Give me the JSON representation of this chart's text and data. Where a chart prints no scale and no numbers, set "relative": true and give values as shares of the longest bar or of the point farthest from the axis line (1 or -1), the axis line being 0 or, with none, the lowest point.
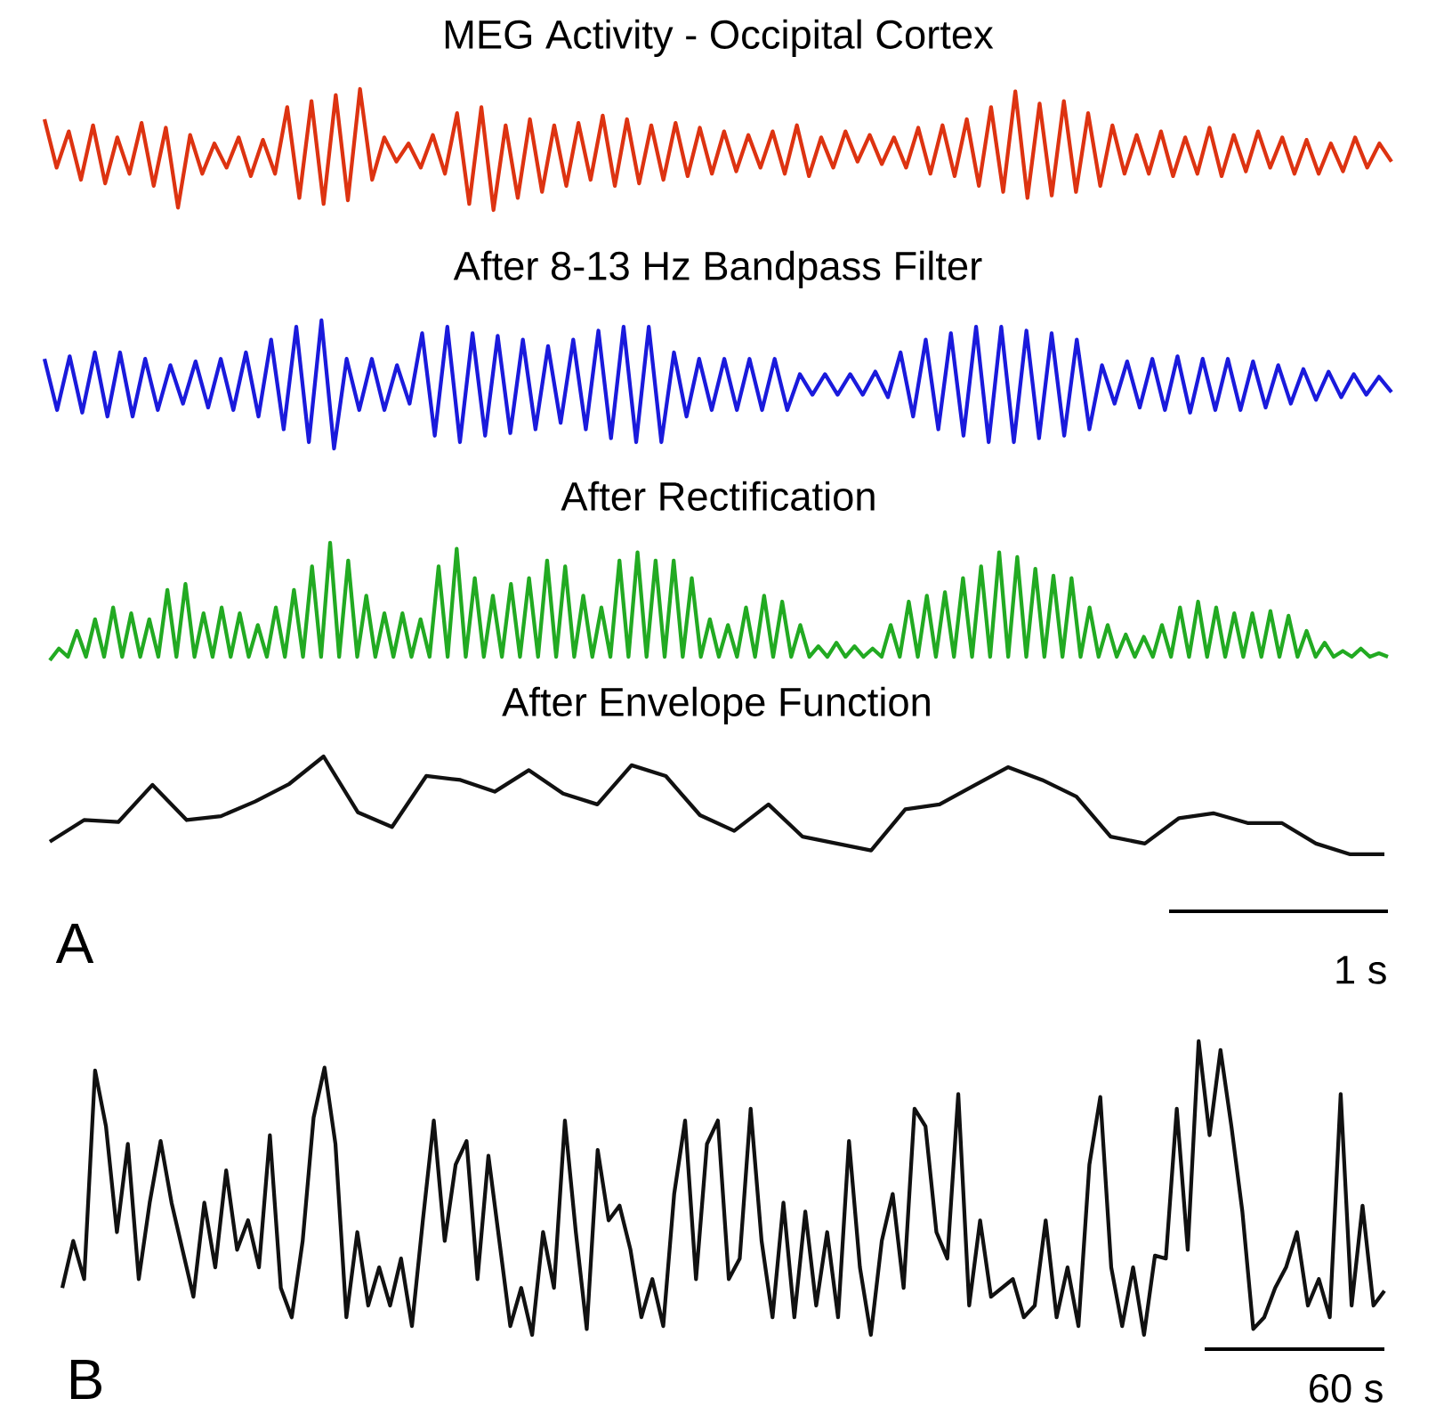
{
  "chart_data": [
    {
      "type": "line",
      "title": "MEG Activity - Occipital Cortex",
      "relative": true,
      "color": "#dd3311",
      "categories": [
        null,
        null,
        null,
        null,
        null,
        null,
        null,
        null,
        null,
        null,
        null,
        null,
        null,
        null,
        null,
        null,
        null,
        null,
        null,
        null,
        null,
        null,
        null,
        null,
        null,
        null,
        null,
        null,
        null,
        null,
        null,
        null,
        null,
        null,
        null,
        null,
        null,
        null,
        null,
        null,
        null,
        null,
        null,
        null,
        null,
        null,
        null,
        null,
        null,
        null,
        null,
        null,
        null,
        null,
        null,
        null,
        null,
        null,
        null,
        null,
        null,
        null,
        null,
        null,
        null,
        null,
        null,
        null,
        null,
        null,
        null,
        null,
        null,
        null,
        null,
        null,
        null,
        null,
        null,
        null,
        null,
        null,
        null,
        null,
        null,
        null,
        null,
        null,
        null,
        null,
        null,
        null,
        null,
        null,
        null,
        null,
        null,
        null,
        null,
        null,
        null,
        null,
        null,
        null,
        null,
        null,
        null,
        null,
        null,
        null,
        null,
        null
      ],
      "values": [
        0.75,
        0.35,
        0.65,
        0.25,
        0.7,
        0.22,
        0.6,
        0.3,
        0.72,
        0.2,
        0.68,
        0.02,
        0.62,
        0.3,
        0.55,
        0.35,
        0.6,
        0.28,
        0.58,
        0.3,
        0.85,
        0.1,
        0.9,
        0.05,
        0.95,
        0.08,
        1.0,
        0.25,
        0.6,
        0.4,
        0.55,
        0.35,
        0.62,
        0.3,
        0.8,
        0.05,
        0.85,
        0,
        0.7,
        0.1,
        0.75,
        0.15,
        0.7,
        0.2,
        0.72,
        0.25,
        0.78,
        0.2,
        0.75,
        0.22,
        0.7,
        0.25,
        0.72,
        0.28,
        0.68,
        0.3,
        0.65,
        0.32,
        0.62,
        0.35,
        0.65,
        0.3,
        0.7,
        0.28,
        0.6,
        0.35,
        0.65,
        0.4,
        0.62,
        0.38,
        0.6,
        0.35,
        0.68,
        0.3,
        0.7,
        0.28,
        0.75,
        0.2,
        0.85,
        0.15,
        0.98,
        0.1,
        0.88,
        0.12,
        0.9,
        0.15,
        0.8,
        0.2,
        0.7,
        0.3,
        0.62,
        0.3,
        0.65,
        0.28,
        0.6,
        0.3,
        0.68,
        0.28,
        0.62,
        0.32,
        0.65,
        0.35,
        0.6,
        0.3,
        0.58,
        0.3,
        0.55,
        0.32,
        0.6,
        0.35,
        0.55,
        0.4
      ]
    },
    {
      "type": "line",
      "title": "After 8-13 Hz Bandpass Filter",
      "relative": true,
      "color": "#1a1adc",
      "categories": [
        null,
        null,
        null,
        null,
        null,
        null,
        null,
        null,
        null,
        null,
        null,
        null,
        null,
        null,
        null,
        null,
        null,
        null,
        null,
        null,
        null,
        null,
        null,
        null,
        null,
        null,
        null,
        null,
        null,
        null,
        null,
        null,
        null,
        null,
        null,
        null,
        null,
        null,
        null,
        null,
        null,
        null,
        null,
        null,
        null,
        null,
        null,
        null,
        null,
        null,
        null,
        null,
        null,
        null,
        null,
        null,
        null,
        null,
        null,
        null,
        null,
        null,
        null,
        null,
        null,
        null,
        null,
        null,
        null,
        null,
        null,
        null,
        null,
        null,
        null,
        null,
        null,
        null,
        null,
        null,
        null,
        null,
        null,
        null,
        null,
        null,
        null,
        null,
        null,
        null,
        null,
        null,
        null,
        null,
        null,
        null,
        null,
        null,
        null,
        null,
        null,
        null,
        null,
        null,
        null,
        null,
        null,
        null
      ],
      "values": [
        0.7,
        0.3,
        0.72,
        0.28,
        0.75,
        0.25,
        0.75,
        0.25,
        0.7,
        0.3,
        0.65,
        0.35,
        0.68,
        0.32,
        0.7,
        0.3,
        0.75,
        0.25,
        0.85,
        0.15,
        0.95,
        0.05,
        1.0,
        0,
        0.7,
        0.3,
        0.7,
        0.3,
        0.65,
        0.35,
        0.9,
        0.1,
        0.95,
        0.05,
        0.9,
        0.1,
        0.88,
        0.12,
        0.85,
        0.15,
        0.8,
        0.2,
        0.85,
        0.15,
        0.92,
        0.08,
        0.95,
        0.05,
        0.95,
        0.05,
        0.75,
        0.25,
        0.7,
        0.3,
        0.7,
        0.3,
        0.7,
        0.3,
        0.7,
        0.3,
        0.58,
        0.42,
        0.58,
        0.42,
        0.58,
        0.42,
        0.6,
        0.4,
        0.75,
        0.25,
        0.85,
        0.15,
        0.9,
        0.1,
        0.95,
        0.05,
        0.95,
        0.05,
        0.92,
        0.08,
        0.9,
        0.1,
        0.85,
        0.15,
        0.65,
        0.35,
        0.68,
        0.32,
        0.7,
        0.3,
        0.72,
        0.28,
        0.7,
        0.3,
        0.7,
        0.3,
        0.68,
        0.32,
        0.65,
        0.35,
        0.62,
        0.38,
        0.6,
        0.4,
        0.58,
        0.42,
        0.56,
        0.44
      ]
    },
    {
      "type": "line",
      "title": "After Rectification",
      "relative": true,
      "color": "#22aa22",
      "categories": [
        null,
        null,
        null,
        null,
        null,
        null,
        null,
        null,
        null,
        null,
        null,
        null,
        null,
        null,
        null,
        null,
        null,
        null,
        null,
        null,
        null,
        null,
        null,
        null,
        null,
        null,
        null,
        null,
        null,
        null,
        null,
        null,
        null,
        null,
        null,
        null,
        null,
        null,
        null,
        null,
        null,
        null,
        null,
        null,
        null,
        null,
        null,
        null,
        null,
        null,
        null,
        null,
        null,
        null,
        null,
        null,
        null,
        null,
        null,
        null,
        null,
        null,
        null,
        null,
        null,
        null,
        null,
        null,
        null,
        null,
        null,
        null,
        null,
        null,
        null,
        null,
        null,
        null,
        null,
        null,
        null,
        null,
        null,
        null,
        null,
        null,
        null,
        null,
        null,
        null,
        null,
        null,
        null,
        null,
        null,
        null,
        null,
        null,
        null,
        null,
        null,
        null,
        null,
        null,
        null,
        null,
        null,
        null,
        null,
        null,
        null,
        null,
        null,
        null,
        null,
        null,
        null,
        null,
        null,
        null,
        null,
        null,
        null,
        null,
        null,
        null,
        null,
        null,
        null,
        null,
        null,
        null,
        null,
        null,
        null,
        null,
        null,
        null,
        null,
        null,
        null,
        null,
        null,
        null,
        null,
        null,
        null,
        null,
        null
      ],
      "values": [
        0,
        0.1,
        0.03,
        0.25,
        0.03,
        0.35,
        0.03,
        0.45,
        0.03,
        0.4,
        0.03,
        0.35,
        0.03,
        0.6,
        0.03,
        0.65,
        0.03,
        0.4,
        0.03,
        0.45,
        0.03,
        0.4,
        0.03,
        0.3,
        0.03,
        0.45,
        0.03,
        0.6,
        0.03,
        0.8,
        0.03,
        1.0,
        0.03,
        0.85,
        0.03,
        0.55,
        0.03,
        0.4,
        0.03,
        0.4,
        0.03,
        0.35,
        0.03,
        0.8,
        0.03,
        0.95,
        0.03,
        0.7,
        0.03,
        0.55,
        0.03,
        0.65,
        0.03,
        0.7,
        0.03,
        0.85,
        0.03,
        0.8,
        0.03,
        0.55,
        0.03,
        0.45,
        0.03,
        0.85,
        0.03,
        0.92,
        0.03,
        0.85,
        0.03,
        0.85,
        0.03,
        0.7,
        0.03,
        0.35,
        0.03,
        0.3,
        0.03,
        0.45,
        0.03,
        0.55,
        0.03,
        0.5,
        0.03,
        0.3,
        0.03,
        0.12,
        0.03,
        0.15,
        0.03,
        0.12,
        0.03,
        0.1,
        0.03,
        0.3,
        0.03,
        0.5,
        0.03,
        0.55,
        0.03,
        0.58,
        0.03,
        0.7,
        0.03,
        0.8,
        0.03,
        0.92,
        0.03,
        0.88,
        0.03,
        0.78,
        0.03,
        0.72,
        0.03,
        0.7,
        0.03,
        0.45,
        0.03,
        0.3,
        0.03,
        0.22,
        0.03,
        0.2,
        0.03,
        0.3,
        0.03,
        0.45,
        0.03,
        0.5,
        0.03,
        0.45,
        0.03,
        0.4,
        0.03,
        0.4,
        0.03,
        0.42,
        0.03,
        0.38,
        0.03,
        0.25,
        0.03,
        0.15,
        0.03,
        0.08,
        0.03,
        0.1,
        0.03,
        0.06,
        0.03
      ]
    },
    {
      "type": "line",
      "title": "After Envelope Function",
      "relative": true,
      "color": "#111111",
      "annotations": [
        "A",
        "1 s"
      ],
      "categories": [
        null,
        null,
        null,
        null,
        null,
        null,
        null,
        null,
        null,
        null,
        null,
        null,
        null,
        null,
        null,
        null,
        null,
        null,
        null,
        null,
        null,
        null,
        null,
        null,
        null,
        null,
        null,
        null,
        null,
        null,
        null,
        null,
        null,
        null,
        null,
        null,
        null,
        null,
        null,
        null
      ],
      "values": [
        0.13,
        0.35,
        0.33,
        0.71,
        0.35,
        0.39,
        0.54,
        0.72,
        1.0,
        0.43,
        0.28,
        0.8,
        0.76,
        0.64,
        0.86,
        0.62,
        0.51,
        0.91,
        0.8,
        0.4,
        0.24,
        0.51,
        0.18,
        0.11,
        0.04,
        0.46,
        0.51,
        0.7,
        0.89,
        0.76,
        0.59,
        0.18,
        0.11,
        0.37,
        0.42,
        0.32,
        0.32,
        0.11,
        0,
        0
      ]
    },
    {
      "type": "line",
      "relative": true,
      "color": "#111111",
      "annotations": [
        "B",
        "60 s"
      ],
      "categories": [
        null,
        null,
        null,
        null,
        null,
        null,
        null,
        null,
        null,
        null,
        null,
        null,
        null,
        null,
        null,
        null,
        null,
        null,
        null,
        null,
        null,
        null,
        null,
        null,
        null,
        null,
        null,
        null,
        null,
        null,
        null,
        null,
        null,
        null,
        null,
        null,
        null,
        null,
        null,
        null,
        null,
        null,
        null,
        null,
        null,
        null,
        null,
        null,
        null,
        null,
        null,
        null,
        null,
        null,
        null,
        null,
        null,
        null,
        null,
        null,
        null,
        null,
        null,
        null,
        null,
        null,
        null,
        null,
        null,
        null,
        null,
        null,
        null,
        null,
        null,
        null,
        null,
        null,
        null,
        null,
        null,
        null,
        null,
        null,
        null,
        null,
        null,
        null,
        null,
        null,
        null,
        null,
        null,
        null,
        null,
        null,
        null,
        null,
        null,
        null,
        null,
        null,
        null,
        null,
        null,
        null,
        null,
        null,
        null,
        null,
        null,
        null,
        null,
        null,
        null,
        null,
        null,
        null,
        null,
        null,
        null,
        null
      ],
      "values": [
        0.16,
        0.32,
        0.19,
        0.9,
        0.71,
        0.35,
        0.65,
        0.19,
        0.45,
        0.66,
        0.45,
        0.29,
        0.13,
        0.45,
        0.23,
        0.56,
        0.29,
        0.39,
        0.23,
        0.68,
        0.16,
        0.06,
        0.32,
        0.74,
        0.91,
        0.65,
        0.06,
        0.35,
        0.1,
        0.23,
        0.1,
        0.26,
        0.03,
        0.39,
        0.73,
        0.32,
        0.58,
        0.66,
        0.19,
        0.61,
        0.32,
        0.03,
        0.16,
        0,
        0.35,
        0.16,
        0.73,
        0.35,
        0.02,
        0.63,
        0.39,
        0.44,
        0.29,
        0.06,
        0.19,
        0.03,
        0.48,
        0.73,
        0.19,
        0.65,
        0.73,
        0.19,
        0.26,
        0.77,
        0.32,
        0.06,
        0.45,
        0.06,
        0.42,
        0.1,
        0.35,
        0.06,
        0.66,
        0.23,
        0,
        0.32,
        0.48,
        0.16,
        0.77,
        0.71,
        0.35,
        0.26,
        0.82,
        0.1,
        0.39,
        0.13,
        0.16,
        0.19,
        0.06,
        0.1,
        0.39,
        0.06,
        0.23,
        0.03,
        0.58,
        0.81,
        0.23,
        0.03,
        0.23,
        0,
        0.27,
        0.26,
        0.77,
        0.29,
        1.0,
        0.68,
        0.97,
        0.71,
        0.42,
        0.02,
        0.06,
        0.16,
        0.23,
        0.35,
        0.1,
        0.19,
        0.06,
        0.82,
        0.1,
        0.44,
        0.1,
        0.15
      ]
    }
  ]
}
